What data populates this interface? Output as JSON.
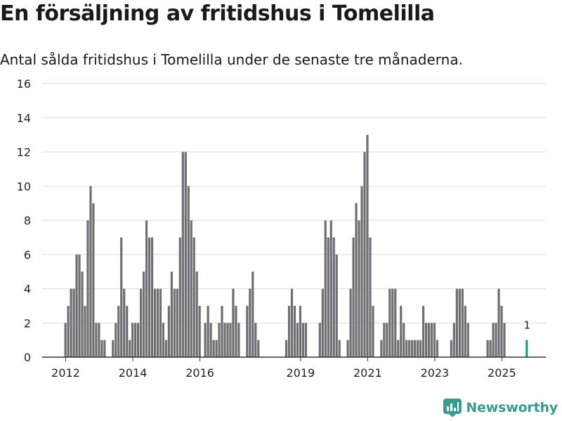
{
  "header": {
    "title": "En försäljning av fritidshus i Tomelilla",
    "subtitle": "Antal sålda fritidshus i Tomelilla under de senaste tre månaderna."
  },
  "brand": {
    "name": "Newsworthy",
    "color": "#3a9b8e"
  },
  "colors": {
    "bar": "#6e6e73",
    "highlight": "#1a9a8c",
    "grid": "#dddddd",
    "axis": "#333333"
  },
  "chart_data": {
    "type": "bar",
    "title": "En försäljning av fritidshus i Tomelilla",
    "subtitle": "Antal sålda fritidshus i Tomelilla under de senaste tre månaderna.",
    "xlabel": "",
    "ylabel": "",
    "ylim": [
      0,
      16
    ],
    "yticks": [
      0,
      2,
      4,
      6,
      8,
      10,
      12,
      14,
      16
    ],
    "start": "2011-10",
    "period": "month",
    "xticks": [
      {
        "label": "2012",
        "index": 3
      },
      {
        "label": "2014",
        "index": 27
      },
      {
        "label": "2016",
        "index": 51
      },
      {
        "label": "2019",
        "index": 87
      },
      {
        "label": "2021",
        "index": 111
      },
      {
        "label": "2023",
        "index": 135
      },
      {
        "label": "2025",
        "index": 159
      }
    ],
    "values": [
      0,
      0,
      0,
      2,
      3,
      4,
      4,
      6,
      6,
      5,
      3,
      8,
      10,
      9,
      2,
      2,
      1,
      1,
      0,
      0,
      1,
      2,
      3,
      7,
      4,
      3,
      1,
      2,
      2,
      2,
      4,
      5,
      8,
      7,
      7,
      4,
      4,
      4,
      2,
      1,
      3,
      5,
      4,
      4,
      7,
      12,
      12,
      10,
      8,
      7,
      5,
      3,
      0,
      2,
      3,
      2,
      1,
      1,
      2,
      3,
      2,
      2,
      2,
      4,
      3,
      2,
      0,
      0,
      3,
      4,
      5,
      2,
      1,
      0,
      0,
      0,
      0,
      0,
      0,
      0,
      0,
      0,
      1,
      3,
      4,
      3,
      2,
      3,
      2,
      2,
      0,
      0,
      0,
      0,
      2,
      4,
      8,
      7,
      8,
      7,
      6,
      1,
      0,
      0,
      1,
      4,
      7,
      9,
      8,
      10,
      12,
      13,
      7,
      3,
      0,
      0,
      1,
      2,
      2,
      4,
      4,
      4,
      1,
      3,
      2,
      1,
      1,
      1,
      1,
      1,
      1,
      3,
      2,
      2,
      2,
      2,
      1,
      0,
      0,
      0,
      0,
      1,
      2,
      4,
      4,
      4,
      3,
      2,
      0,
      0,
      0,
      0,
      0,
      0,
      1,
      1,
      2,
      2,
      4,
      3,
      2,
      0,
      0,
      0,
      0,
      0,
      0,
      0,
      1
    ],
    "highlight": {
      "index": 168,
      "label": "1"
    }
  }
}
